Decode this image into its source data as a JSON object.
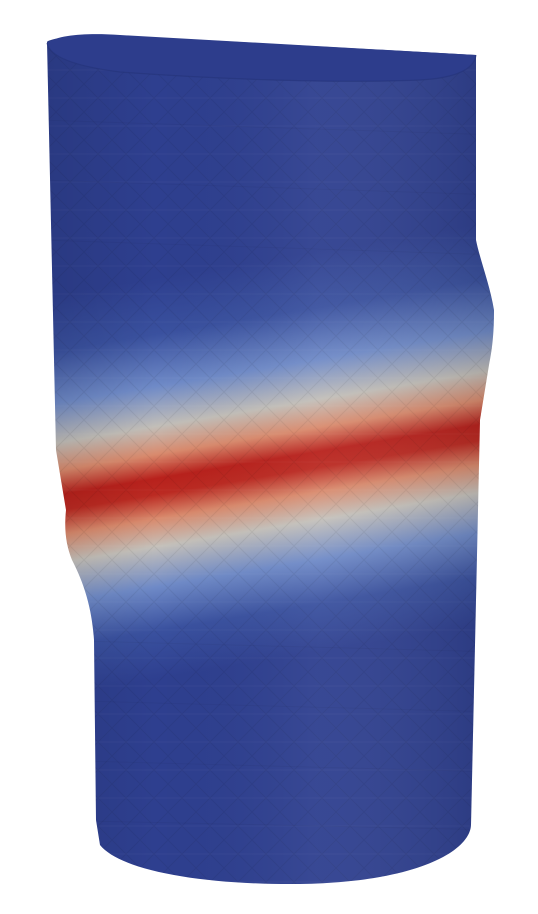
{
  "scene": {
    "subject": "deformed-cylinder-shear-band",
    "background_color": "#ffffff",
    "colormap": {
      "low": "#2e3f8f",
      "mid_low": "#4a64b5",
      "mid": "#c9c3bd",
      "mid_high": "#d6765c",
      "high": "#b01515"
    }
  }
}
